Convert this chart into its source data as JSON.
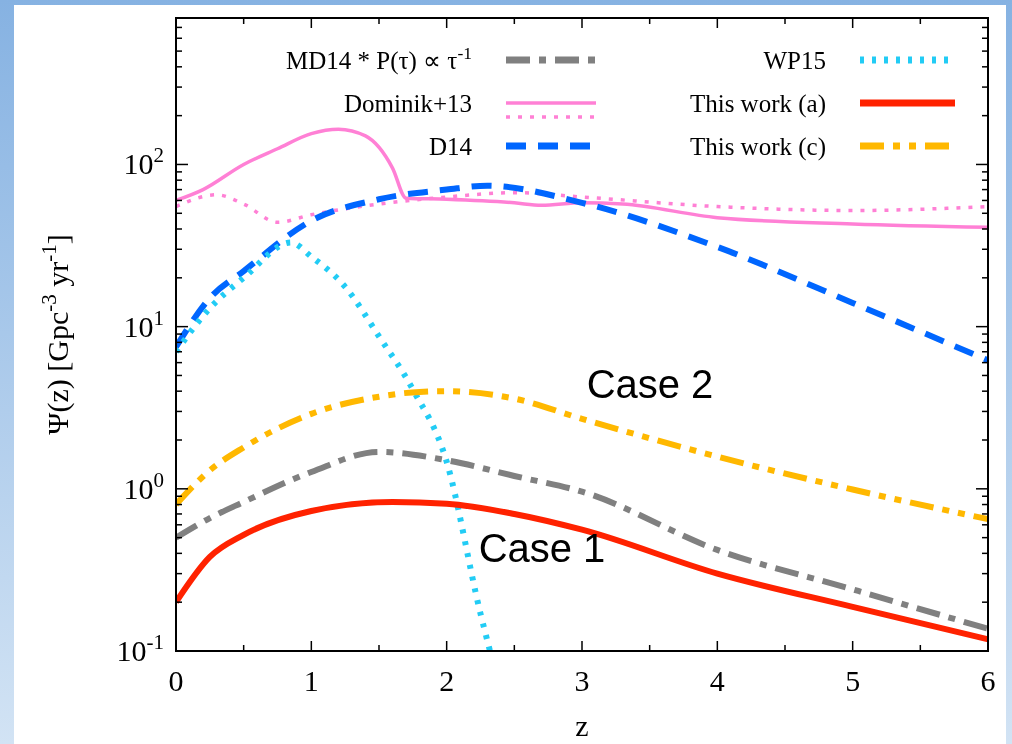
{
  "chart_data": {
    "type": "line",
    "xlabel": "z",
    "ylabel": "Ψ(z) [Gpc$^{-3}$ yr$^{-1}$]",
    "log": "y",
    "legend": "top",
    "xlim": [
      0,
      6
    ],
    "ylim": [
      0.1,
      800
    ],
    "xticks": [
      0,
      {
        "value": 0.5,
        "label": null
      },
      1,
      {
        "value": 1.5,
        "label": null
      },
      2,
      {
        "value": 2.5,
        "label": null
      },
      3,
      {
        "value": 3.5,
        "label": null
      },
      4,
      {
        "value": 4.5,
        "label": null
      },
      5,
      {
        "value": 5.5,
        "label": null
      },
      6
    ],
    "yticks": [
      {
        "value": 0.1,
        "label": "10$^{-1}$"
      },
      {
        "value": 0.2,
        "label": null
      },
      {
        "value": 0.3,
        "label": null
      },
      {
        "value": 0.4,
        "label": null
      },
      {
        "value": 0.5,
        "label": null
      },
      {
        "value": 0.6,
        "label": null
      },
      {
        "value": 0.7,
        "label": null
      },
      {
        "value": 0.8,
        "label": null
      },
      {
        "value": 0.9,
        "label": null
      },
      {
        "value": 1,
        "label": "10$^{0}$"
      },
      {
        "value": 2,
        "label": null
      },
      {
        "value": 3,
        "label": null
      },
      {
        "value": 4,
        "label": null
      },
      {
        "value": 5,
        "label": null
      },
      {
        "value": 6,
        "label": null
      },
      {
        "value": 7,
        "label": null
      },
      {
        "value": 8,
        "label": null
      },
      {
        "value": 9,
        "label": null
      },
      {
        "value": 10,
        "label": "10$^{1}$"
      },
      {
        "value": 20,
        "label": null
      },
      {
        "value": 30,
        "label": null
      },
      {
        "value": 40,
        "label": null
      },
      {
        "value": 50,
        "label": null
      },
      {
        "value": 60,
        "label": null
      },
      {
        "value": 70,
        "label": null
      },
      {
        "value": 80,
        "label": null
      },
      {
        "value": 90,
        "label": null
      },
      {
        "value": 100,
        "label": "10$^{2}$"
      },
      {
        "value": 200,
        "label": null
      },
      {
        "value": 300,
        "label": null
      },
      {
        "value": 400,
        "label": null
      },
      {
        "value": 500,
        "label": null
      },
      {
        "value": 600,
        "label": null
      },
      {
        "value": 700,
        "label": null
      },
      {
        "value": 800,
        "label": null
      }
    ],
    "grid": false,
    "annotations": [
      "Case 2",
      "Case 1"
    ],
    "series": [
      {
        "name": "MD14 * P(τ) ∝ τ$^{-1}$",
        "color": "#808080",
        "line_style": "dashdot",
        "x": [
          0,
          0.25,
          0.5,
          1,
          1.5,
          2,
          2.5,
          3,
          4,
          5,
          6
        ],
        "values": [
          0.5,
          0.66,
          0.83,
          1.27,
          1.69,
          1.5,
          1.2,
          0.96,
          0.42,
          0.24,
          0.137
        ]
      },
      {
        "name": "Dominik+13",
        "color": "#ff80d5",
        "line_style": "solid",
        "x": [
          0,
          0.2,
          0.5,
          0.75,
          1,
          1.2,
          1.4,
          1.6,
          1.7,
          2,
          2.5,
          2.7,
          3,
          3.3,
          4,
          5,
          6
        ],
        "values": [
          60,
          70,
          100,
          125,
          155,
          165,
          150,
          95,
          62,
          61,
          58,
          56,
          58,
          57,
          47,
          43,
          41
        ]
      },
      {
        "color": "#ff80d5",
        "line_style": "dotted",
        "x": [
          0,
          0.3,
          0.5,
          0.75,
          1,
          1.5,
          2,
          2.5,
          3,
          4,
          5,
          6
        ],
        "values": [
          55,
          65,
          57,
          44,
          49,
          57,
          63,
          67,
          63,
          55,
          52,
          55
        ]
      },
      {
        "name": "D14",
        "color": "#0066ff",
        "line_style": "dashed",
        "x": [
          0,
          0.25,
          0.5,
          1,
          1.5,
          2,
          2.3,
          3,
          4,
          5,
          6
        ],
        "values": [
          7.5,
          15,
          22,
          45,
          61,
          70,
          74,
          58,
          31,
          14,
          6.2
        ]
      },
      {
        "name": "WP15",
        "color": "#22ccf5",
        "line_style": "dotted",
        "x": [
          0,
          0.25,
          0.5,
          0.85,
          1,
          1.25,
          1.5,
          1.75,
          2,
          2.25,
          2.32
        ],
        "values": [
          7,
          13,
          20,
          33,
          27,
          17.6,
          8.7,
          4.1,
          1.47,
          0.17,
          0.1
        ]
      },
      {
        "name": "This work (a)",
        "color": "#ff2200",
        "line_style": "solid",
        "x": [
          0,
          0.25,
          0.5,
          1,
          1.6,
          2,
          2.5,
          3,
          4,
          5,
          6
        ],
        "values": [
          0.2,
          0.38,
          0.52,
          0.73,
          0.83,
          0.81,
          0.7,
          0.56,
          0.3,
          0.187,
          0.118
        ]
      },
      {
        "name": "This work (c)",
        "color": "#ffb800",
        "line_style": "dashdotdot",
        "x": [
          0,
          0.25,
          0.5,
          1,
          1.5,
          1.8,
          2,
          2.5,
          3,
          4,
          5,
          6
        ],
        "values": [
          0.8,
          1.3,
          1.8,
          2.9,
          3.7,
          3.96,
          4.0,
          3.6,
          2.7,
          1.58,
          0.99,
          0.65
        ]
      }
    ]
  }
}
